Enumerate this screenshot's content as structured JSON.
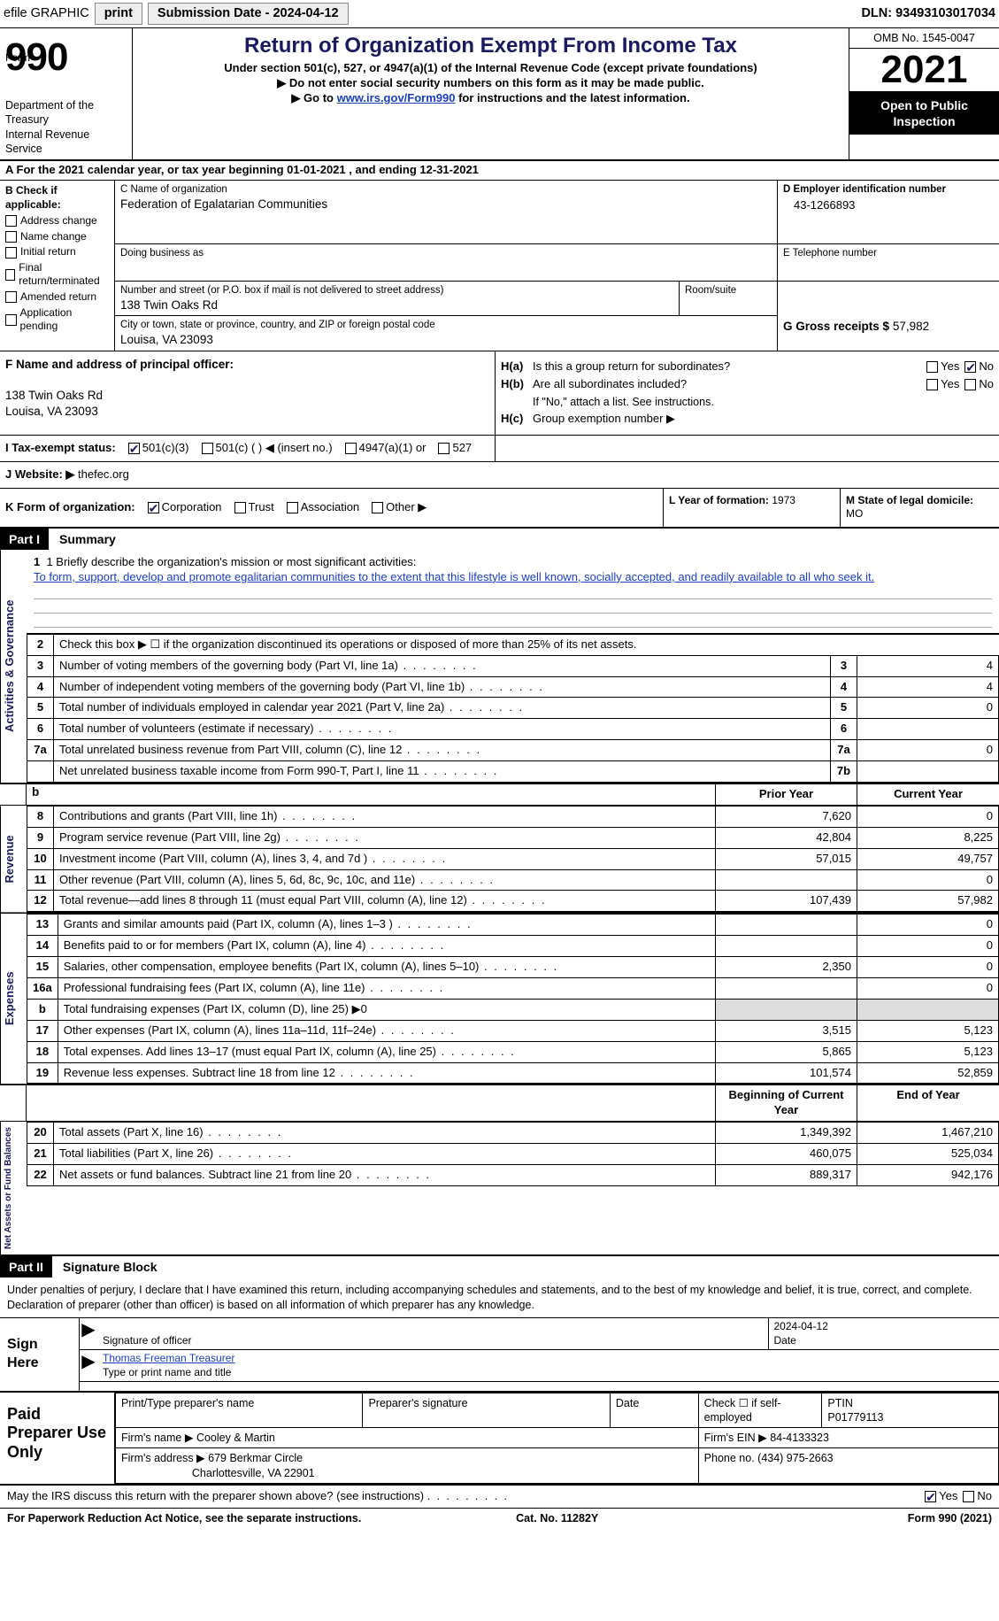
{
  "topbar": {
    "efile": "efile GRAPHIC",
    "print": "print",
    "submission": "Submission Date - 2024-04-12",
    "dln": "DLN: 93493103017034"
  },
  "header": {
    "form_word": "Form",
    "form_num": "990",
    "title": "Return of Organization Exempt From Income Tax",
    "sub1": "Under section 501(c), 527, or 4947(a)(1) of the Internal Revenue Code (except private foundations)",
    "sub2": "▶ Do not enter social security numbers on this form as it may be made public.",
    "sub3_pre": "▶ Go to ",
    "sub3_link": "www.irs.gov/Form990",
    "sub3_post": " for instructions and the latest information.",
    "dept": "Department of the Treasury\nInternal Revenue Service",
    "omb": "OMB No. 1545-0047",
    "year": "2021",
    "open": "Open to Public Inspection"
  },
  "line_a": "A For the 2021 calendar year, or tax year beginning 01-01-2021   , and ending 12-31-2021",
  "b": {
    "hdr": "B Check if applicable:",
    "items": [
      "Address change",
      "Name change",
      "Initial return",
      "Final return/terminated",
      "Amended return",
      "Application pending"
    ]
  },
  "c": {
    "name_label": "C Name of organization",
    "name": "Federation of Egalatarian Communities",
    "dba_label": "Doing business as",
    "addr_label": "Number and street (or P.O. box if mail is not delivered to street address)",
    "addr": "138 Twin Oaks Rd",
    "room_label": "Room/suite",
    "city_label": "City or town, state or province, country, and ZIP or foreign postal code",
    "city": "Louisa, VA  23093"
  },
  "d": {
    "ein_label": "D Employer identification number",
    "ein": "43-1266893",
    "tel_label": "E Telephone number",
    "gross_label": "G Gross receipts $",
    "gross": "57,982"
  },
  "f": {
    "label": "F Name and address of principal officer:",
    "addr1": "138 Twin Oaks Rd",
    "addr2": "Louisa, VA  23093"
  },
  "h": {
    "a_label": "H(a)",
    "a_q": "Is this a group return for subordinates?",
    "b_label": "H(b)",
    "b_q": "Are all subordinates included?",
    "note": "If \"No,\" attach a list. See instructions.",
    "c_label": "H(c)",
    "c_q": "Group exemption number ▶",
    "yes": "Yes",
    "no": "No"
  },
  "i": {
    "label": "I   Tax-exempt status:",
    "o1": "501(c)(3)",
    "o2": "501(c) (  ) ◀ (insert no.)",
    "o3": "4947(a)(1) or",
    "o4": "527"
  },
  "j": {
    "label": "J  Website: ▶",
    "val": "thefec.org"
  },
  "k": {
    "label": "K Form of organization:",
    "o1": "Corporation",
    "o2": "Trust",
    "o3": "Association",
    "o4": "Other ▶"
  },
  "l": {
    "label": "L Year of formation:",
    "val": "1973"
  },
  "m": {
    "label": "M State of legal domicile:",
    "val": "MO"
  },
  "part1": {
    "tag": "Part I",
    "title": "Summary",
    "mission_label": "1   Briefly describe the organization's mission or most significant activities:",
    "mission": "To form, support, develop and promote egalitarian communities to the extent that this lifestyle is well known, socially accepted, and readily available to all who seek it."
  },
  "vtabs": {
    "gov": "Activities & Governance",
    "rev": "Revenue",
    "exp": "Expenses",
    "net": "Net Assets or Fund Balances"
  },
  "col_headers": {
    "prior": "Prior Year",
    "current": "Current Year",
    "beg": "Beginning of Current Year",
    "end": "End of Year"
  },
  "gov_rows": [
    {
      "n": "2",
      "d": "Check this box ▶ ☐ if the organization discontinued its operations or disposed of more than 25% of its net assets."
    },
    {
      "n": "3",
      "d": "Number of voting members of the governing body (Part VI, line 1a)",
      "box": "3",
      "v": "4"
    },
    {
      "n": "4",
      "d": "Number of independent voting members of the governing body (Part VI, line 1b)",
      "box": "4",
      "v": "4"
    },
    {
      "n": "5",
      "d": "Total number of individuals employed in calendar year 2021 (Part V, line 2a)",
      "box": "5",
      "v": "0"
    },
    {
      "n": "6",
      "d": "Total number of volunteers (estimate if necessary)",
      "box": "6",
      "v": ""
    },
    {
      "n": "7a",
      "d": "Total unrelated business revenue from Part VIII, column (C), line 12",
      "box": "7a",
      "v": "0"
    },
    {
      "n": "",
      "d": "Net unrelated business taxable income from Form 990-T, Part I, line 11",
      "box": "7b",
      "v": ""
    }
  ],
  "rev_rows": [
    {
      "n": "8",
      "d": "Contributions and grants (Part VIII, line 1h)",
      "p": "7,620",
      "c": "0"
    },
    {
      "n": "9",
      "d": "Program service revenue (Part VIII, line 2g)",
      "p": "42,804",
      "c": "8,225"
    },
    {
      "n": "10",
      "d": "Investment income (Part VIII, column (A), lines 3, 4, and 7d )",
      "p": "57,015",
      "c": "49,757"
    },
    {
      "n": "11",
      "d": "Other revenue (Part VIII, column (A), lines 5, 6d, 8c, 9c, 10c, and 11e)",
      "p": "",
      "c": "0"
    },
    {
      "n": "12",
      "d": "Total revenue—add lines 8 through 11 (must equal Part VIII, column (A), line 12)",
      "p": "107,439",
      "c": "57,982"
    }
  ],
  "exp_rows": [
    {
      "n": "13",
      "d": "Grants and similar amounts paid (Part IX, column (A), lines 1–3 )",
      "p": "",
      "c": "0"
    },
    {
      "n": "14",
      "d": "Benefits paid to or for members (Part IX, column (A), line 4)",
      "p": "",
      "c": "0"
    },
    {
      "n": "15",
      "d": "Salaries, other compensation, employee benefits (Part IX, column (A), lines 5–10)",
      "p": "2,350",
      "c": "0"
    },
    {
      "n": "16a",
      "d": "Professional fundraising fees (Part IX, column (A), line 11e)",
      "p": "",
      "c": "0"
    },
    {
      "n": "b",
      "d": "Total fundraising expenses (Part IX, column (D), line 25) ▶0",
      "shade": true
    },
    {
      "n": "17",
      "d": "Other expenses (Part IX, column (A), lines 11a–11d, 11f–24e)",
      "p": "3,515",
      "c": "5,123"
    },
    {
      "n": "18",
      "d": "Total expenses. Add lines 13–17 (must equal Part IX, column (A), line 25)",
      "p": "5,865",
      "c": "5,123"
    },
    {
      "n": "19",
      "d": "Revenue less expenses. Subtract line 18 from line 12",
      "p": "101,574",
      "c": "52,859"
    }
  ],
  "net_rows": [
    {
      "n": "20",
      "d": "Total assets (Part X, line 16)",
      "p": "1,349,392",
      "c": "1,467,210"
    },
    {
      "n": "21",
      "d": "Total liabilities (Part X, line 26)",
      "p": "460,075",
      "c": "525,034"
    },
    {
      "n": "22",
      "d": "Net assets or fund balances. Subtract line 21 from line 20",
      "p": "889,317",
      "c": "942,176"
    }
  ],
  "part2": {
    "tag": "Part II",
    "title": "Signature Block",
    "intro": "Under penalties of perjury, I declare that I have examined this return, including accompanying schedules and statements, and to the best of my knowledge and belief, it is true, correct, and complete. Declaration of preparer (other than officer) is based on all information of which preparer has any knowledge."
  },
  "sign": {
    "here": "Sign Here",
    "sig_label": "Signature of officer",
    "date_label": "Date",
    "date": "2024-04-12",
    "name": "Thomas Freeman  Treasurer",
    "name_label": "Type or print name and title"
  },
  "prep": {
    "here": "Paid Preparer Use Only",
    "r1": {
      "l1": "Print/Type preparer's name",
      "l2": "Preparer's signature",
      "l3": "Date",
      "l4": "Check ☐ if self-employed",
      "l5": "PTIN",
      "ptin": "P01779113"
    },
    "r2": {
      "l": "Firm's name    ▶",
      "v": "Cooley & Martin",
      "einl": "Firm's EIN ▶",
      "ein": "84-4133323"
    },
    "r3": {
      "l": "Firm's address ▶",
      "v1": "679 Berkmar Circle",
      "v2": "Charlottesville, VA  22901",
      "phl": "Phone no.",
      "ph": "(434) 975-2663"
    }
  },
  "discuss": {
    "q": "May the IRS discuss this return with the preparer shown above? (see instructions)",
    "yes": "Yes",
    "no": "No"
  },
  "footer": {
    "l": "For Paperwork Reduction Act Notice, see the separate instructions.",
    "c": "Cat. No. 11282Y",
    "r": "Form 990 (2021)"
  }
}
